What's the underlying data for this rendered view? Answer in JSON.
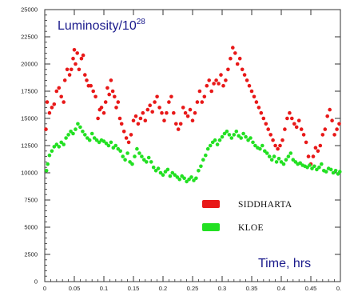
{
  "chart_data": {
    "type": "scatter",
    "title_main": "Luminosity/10",
    "title_exponent": "28",
    "x_annotation": "Time, hrs",
    "xlim": [
      0,
      0.5
    ],
    "ylim": [
      0,
      25000
    ],
    "x_ticks": [
      "0",
      "0.05",
      "0.1",
      "0.15",
      "0.2",
      "0.25",
      "0.3",
      "0.35",
      "0.4",
      "0.45",
      "0."
    ],
    "y_ticks": [
      "0",
      "2500",
      "5000",
      "7500",
      "10000",
      "12500",
      "15000",
      "17500",
      "20000",
      "22500",
      "25000"
    ],
    "legend_placement": "lower-right",
    "series": [
      {
        "name": "SIDDHARTA",
        "color": "#e81818",
        "points": [
          [
            0.002,
            14000
          ],
          [
            0.004,
            16500
          ],
          [
            0.008,
            15500
          ],
          [
            0.012,
            16000
          ],
          [
            0.016,
            16300
          ],
          [
            0.02,
            17500
          ],
          [
            0.024,
            17800
          ],
          [
            0.028,
            17000
          ],
          [
            0.032,
            16500
          ],
          [
            0.034,
            18500
          ],
          [
            0.038,
            19500
          ],
          [
            0.042,
            19000
          ],
          [
            0.045,
            19500
          ],
          [
            0.048,
            20500
          ],
          [
            0.05,
            21300
          ],
          [
            0.052,
            20000
          ],
          [
            0.055,
            21000
          ],
          [
            0.058,
            19500
          ],
          [
            0.062,
            20500
          ],
          [
            0.065,
            20800
          ],
          [
            0.068,
            19000
          ],
          [
            0.071,
            18500
          ],
          [
            0.074,
            18000
          ],
          [
            0.078,
            18000
          ],
          [
            0.082,
            17500
          ],
          [
            0.086,
            17000
          ],
          [
            0.09,
            15000
          ],
          [
            0.093,
            15800
          ],
          [
            0.096,
            16000
          ],
          [
            0.1,
            15500
          ],
          [
            0.103,
            16500
          ],
          [
            0.106,
            17800
          ],
          [
            0.109,
            17200
          ],
          [
            0.112,
            18500
          ],
          [
            0.115,
            17500
          ],
          [
            0.118,
            17000
          ],
          [
            0.121,
            16000
          ],
          [
            0.124,
            16500
          ],
          [
            0.127,
            15000
          ],
          [
            0.13,
            14500
          ],
          [
            0.134,
            13800
          ],
          [
            0.138,
            13200
          ],
          [
            0.142,
            12800
          ],
          [
            0.146,
            13500
          ],
          [
            0.15,
            14800
          ],
          [
            0.154,
            15200
          ],
          [
            0.158,
            14500
          ],
          [
            0.162,
            15000
          ],
          [
            0.166,
            15500
          ],
          [
            0.17,
            14800
          ],
          [
            0.174,
            15800
          ],
          [
            0.178,
            16200
          ],
          [
            0.182,
            15600
          ],
          [
            0.186,
            16500
          ],
          [
            0.19,
            17000
          ],
          [
            0.194,
            16000
          ],
          [
            0.198,
            15500
          ],
          [
            0.202,
            14800
          ],
          [
            0.206,
            15500
          ],
          [
            0.21,
            16500
          ],
          [
            0.214,
            17000
          ],
          [
            0.218,
            15500
          ],
          [
            0.222,
            14500
          ],
          [
            0.226,
            14000
          ],
          [
            0.23,
            14500
          ],
          [
            0.234,
            16000
          ],
          [
            0.238,
            15500
          ],
          [
            0.242,
            15200
          ],
          [
            0.246,
            15800
          ],
          [
            0.25,
            14800
          ],
          [
            0.254,
            15500
          ],
          [
            0.258,
            16500
          ],
          [
            0.262,
            17500
          ],
          [
            0.266,
            16500
          ],
          [
            0.27,
            17000
          ],
          [
            0.274,
            18000
          ],
          [
            0.278,
            18500
          ],
          [
            0.282,
            17500
          ],
          [
            0.286,
            18200
          ],
          [
            0.29,
            18500
          ],
          [
            0.294,
            18200
          ],
          [
            0.298,
            19000
          ],
          [
            0.302,
            18000
          ],
          [
            0.306,
            18500
          ],
          [
            0.31,
            19500
          ],
          [
            0.314,
            20500
          ],
          [
            0.318,
            21500
          ],
          [
            0.322,
            21000
          ],
          [
            0.326,
            20000
          ],
          [
            0.33,
            20500
          ],
          [
            0.334,
            19500
          ],
          [
            0.338,
            19000
          ],
          [
            0.342,
            18500
          ],
          [
            0.346,
            18000
          ],
          [
            0.35,
            17500
          ],
          [
            0.354,
            17000
          ],
          [
            0.358,
            16500
          ],
          [
            0.362,
            16000
          ],
          [
            0.366,
            15500
          ],
          [
            0.37,
            15000
          ],
          [
            0.374,
            14500
          ],
          [
            0.378,
            14000
          ],
          [
            0.382,
            13500
          ],
          [
            0.386,
            13000
          ],
          [
            0.39,
            12500
          ],
          [
            0.394,
            12200
          ],
          [
            0.398,
            12500
          ],
          [
            0.402,
            13000
          ],
          [
            0.406,
            14000
          ],
          [
            0.41,
            15000
          ],
          [
            0.414,
            15500
          ],
          [
            0.418,
            15000
          ],
          [
            0.422,
            14500
          ],
          [
            0.426,
            14200
          ],
          [
            0.43,
            14800
          ],
          [
            0.434,
            14000
          ],
          [
            0.438,
            13500
          ],
          [
            0.442,
            12800
          ],
          [
            0.446,
            11500
          ],
          [
            0.45,
            10800
          ],
          [
            0.454,
            11500
          ],
          [
            0.458,
            12300
          ],
          [
            0.462,
            12000
          ],
          [
            0.466,
            12500
          ],
          [
            0.47,
            13500
          ],
          [
            0.474,
            14000
          ],
          [
            0.478,
            15200
          ],
          [
            0.482,
            15800
          ],
          [
            0.486,
            14800
          ],
          [
            0.49,
            13500
          ],
          [
            0.494,
            14000
          ],
          [
            0.498,
            14500
          ]
        ]
      },
      {
        "name": "KLOE",
        "color": "#22e022",
        "points": [
          [
            0.003,
            10200
          ],
          [
            0.005,
            10800
          ],
          [
            0.008,
            11600
          ],
          [
            0.012,
            12000
          ],
          [
            0.016,
            12400
          ],
          [
            0.02,
            12600
          ],
          [
            0.024,
            12400
          ],
          [
            0.028,
            12800
          ],
          [
            0.032,
            12600
          ],
          [
            0.036,
            13200
          ],
          [
            0.04,
            13500
          ],
          [
            0.044,
            13800
          ],
          [
            0.048,
            13600
          ],
          [
            0.052,
            14000
          ],
          [
            0.056,
            14500
          ],
          [
            0.06,
            14200
          ],
          [
            0.064,
            13800
          ],
          [
            0.068,
            13500
          ],
          [
            0.072,
            13200
          ],
          [
            0.076,
            13000
          ],
          [
            0.08,
            13600
          ],
          [
            0.084,
            13200
          ],
          [
            0.088,
            13000
          ],
          [
            0.092,
            12800
          ],
          [
            0.096,
            13000
          ],
          [
            0.1,
            12900
          ],
          [
            0.104,
            12700
          ],
          [
            0.108,
            12500
          ],
          [
            0.112,
            12800
          ],
          [
            0.116,
            12300
          ],
          [
            0.12,
            12500
          ],
          [
            0.124,
            12200
          ],
          [
            0.128,
            12000
          ],
          [
            0.132,
            11500
          ],
          [
            0.136,
            11200
          ],
          [
            0.14,
            11800
          ],
          [
            0.144,
            11000
          ],
          [
            0.148,
            10800
          ],
          [
            0.152,
            11500
          ],
          [
            0.156,
            12200
          ],
          [
            0.16,
            11800
          ],
          [
            0.164,
            11500
          ],
          [
            0.168,
            11200
          ],
          [
            0.172,
            11000
          ],
          [
            0.176,
            11400
          ],
          [
            0.18,
            11000
          ],
          [
            0.184,
            10500
          ],
          [
            0.188,
            10200
          ],
          [
            0.192,
            10400
          ],
          [
            0.196,
            10000
          ],
          [
            0.2,
            9800
          ],
          [
            0.204,
            10100
          ],
          [
            0.208,
            10300
          ],
          [
            0.212,
            9700
          ],
          [
            0.216,
            10000
          ],
          [
            0.22,
            9800
          ],
          [
            0.224,
            9600
          ],
          [
            0.228,
            9400
          ],
          [
            0.232,
            9700
          ],
          [
            0.236,
            9500
          ],
          [
            0.24,
            9200
          ],
          [
            0.244,
            9400
          ],
          [
            0.248,
            9600
          ],
          [
            0.252,
            9300
          ],
          [
            0.256,
            9500
          ],
          [
            0.26,
            10200
          ],
          [
            0.264,
            10600
          ],
          [
            0.268,
            11200
          ],
          [
            0.272,
            11600
          ],
          [
            0.276,
            12200
          ],
          [
            0.28,
            12500
          ],
          [
            0.284,
            12800
          ],
          [
            0.288,
            13000
          ],
          [
            0.292,
            12600
          ],
          [
            0.296,
            13000
          ],
          [
            0.3,
            13300
          ],
          [
            0.304,
            13600
          ],
          [
            0.308,
            13800
          ],
          [
            0.312,
            13500
          ],
          [
            0.316,
            13200
          ],
          [
            0.32,
            13500
          ],
          [
            0.324,
            13800
          ],
          [
            0.328,
            13400
          ],
          [
            0.332,
            13200
          ],
          [
            0.336,
            13600
          ],
          [
            0.34,
            13300
          ],
          [
            0.344,
            13000
          ],
          [
            0.348,
            13200
          ],
          [
            0.352,
            12800
          ],
          [
            0.356,
            12500
          ],
          [
            0.36,
            12300
          ],
          [
            0.364,
            12200
          ],
          [
            0.368,
            12500
          ],
          [
            0.372,
            12000
          ],
          [
            0.376,
            11800
          ],
          [
            0.38,
            11500
          ],
          [
            0.384,
            11200
          ],
          [
            0.388,
            11500
          ],
          [
            0.392,
            11000
          ],
          [
            0.396,
            11300
          ],
          [
            0.4,
            11000
          ],
          [
            0.404,
            10800
          ],
          [
            0.408,
            11200
          ],
          [
            0.412,
            11500
          ],
          [
            0.416,
            11800
          ],
          [
            0.42,
            11200
          ],
          [
            0.424,
            11000
          ],
          [
            0.428,
            10800
          ],
          [
            0.432,
            10900
          ],
          [
            0.436,
            10700
          ],
          [
            0.44,
            10600
          ],
          [
            0.444,
            10500
          ],
          [
            0.448,
            10700
          ],
          [
            0.452,
            10400
          ],
          [
            0.456,
            10600
          ],
          [
            0.46,
            10300
          ],
          [
            0.464,
            10500
          ],
          [
            0.468,
            10800
          ],
          [
            0.472,
            10200
          ],
          [
            0.476,
            10100
          ],
          [
            0.48,
            10400
          ],
          [
            0.484,
            10300
          ],
          [
            0.488,
            10000
          ],
          [
            0.492,
            10200
          ],
          [
            0.496,
            9900
          ],
          [
            0.499,
            10100
          ]
        ]
      }
    ]
  }
}
